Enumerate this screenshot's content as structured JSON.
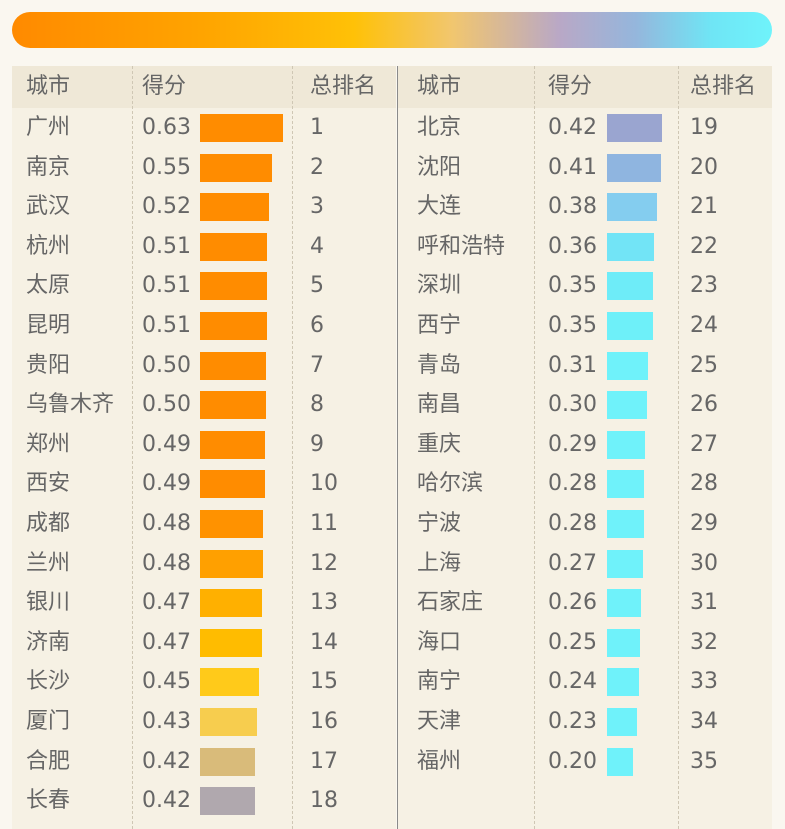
{
  "headers": {
    "city": "城市",
    "score": "得分",
    "rank": "总排名"
  },
  "chart_data": {
    "type": "bar",
    "orientation": "horizontal",
    "xlim": [
      0,
      0.63
    ],
    "columns": [
      "城市",
      "得分",
      "总排名"
    ],
    "rows": [
      {
        "city": "广州",
        "score": 0.63,
        "score_label": "0.63",
        "rank": "1",
        "color": "#ff8c00"
      },
      {
        "city": "南京",
        "score": 0.55,
        "score_label": "0.55",
        "rank": "2",
        "color": "#ff8c00"
      },
      {
        "city": "武汉",
        "score": 0.52,
        "score_label": "0.52",
        "rank": "3",
        "color": "#ff8c00"
      },
      {
        "city": "杭州",
        "score": 0.51,
        "score_label": "0.51",
        "rank": "4",
        "color": "#ff8c00"
      },
      {
        "city": "太原",
        "score": 0.51,
        "score_label": "0.51",
        "rank": "5",
        "color": "#ff8c00"
      },
      {
        "city": "昆明",
        "score": 0.51,
        "score_label": "0.51",
        "rank": "6",
        "color": "#ff8c00"
      },
      {
        "city": "贵阳",
        "score": 0.5,
        "score_label": "0.50",
        "rank": "7",
        "color": "#ff8c00"
      },
      {
        "city": "乌鲁木齐",
        "score": 0.5,
        "score_label": "0.50",
        "rank": "8",
        "color": "#ff8c00"
      },
      {
        "city": "郑州",
        "score": 0.49,
        "score_label": "0.49",
        "rank": "9",
        "color": "#ff8c00"
      },
      {
        "city": "西安",
        "score": 0.49,
        "score_label": "0.49",
        "rank": "10",
        "color": "#ff8c00"
      },
      {
        "city": "成都",
        "score": 0.48,
        "score_label": "0.48",
        "rank": "11",
        "color": "#ff9200"
      },
      {
        "city": "兰州",
        "score": 0.48,
        "score_label": "0.48",
        "rank": "12",
        "color": "#ffa000"
      },
      {
        "city": "银川",
        "score": 0.47,
        "score_label": "0.47",
        "rank": "13",
        "color": "#ffb000"
      },
      {
        "city": "济南",
        "score": 0.47,
        "score_label": "0.47",
        "rank": "14",
        "color": "#ffbc00"
      },
      {
        "city": "长沙",
        "score": 0.45,
        "score_label": "0.45",
        "rank": "15",
        "color": "#ffca1a"
      },
      {
        "city": "厦门",
        "score": 0.43,
        "score_label": "0.43",
        "rank": "16",
        "color": "#f7cd4e"
      },
      {
        "city": "合肥",
        "score": 0.42,
        "score_label": "0.42",
        "rank": "17",
        "color": "#d9bb7a"
      },
      {
        "city": "长春",
        "score": 0.42,
        "score_label": "0.42",
        "rank": "18",
        "color": "#b0a8ae"
      },
      {
        "city": "北京",
        "score": 0.42,
        "score_label": "0.42",
        "rank": "19",
        "color": "#9aa5d0"
      },
      {
        "city": "沈阳",
        "score": 0.41,
        "score_label": "0.41",
        "rank": "20",
        "color": "#8fb5e0"
      },
      {
        "city": "大连",
        "score": 0.38,
        "score_label": "0.38",
        "rank": "21",
        "color": "#84cdef"
      },
      {
        "city": "呼和浩特",
        "score": 0.36,
        "score_label": "0.36",
        "rank": "22",
        "color": "#72e4f6"
      },
      {
        "city": "深圳",
        "score": 0.35,
        "score_label": "0.35",
        "rank": "23",
        "color": "#6eecf8"
      },
      {
        "city": "西宁",
        "score": 0.35,
        "score_label": "0.35",
        "rank": "24",
        "color": "#6ef0f9"
      },
      {
        "city": "青岛",
        "score": 0.31,
        "score_label": "0.31",
        "rank": "25",
        "color": "#6ff2fa"
      },
      {
        "city": "南昌",
        "score": 0.3,
        "score_label": "0.30",
        "rank": "26",
        "color": "#6ff2fa"
      },
      {
        "city": "重庆",
        "score": 0.29,
        "score_label": "0.29",
        "rank": "27",
        "color": "#6ff2fa"
      },
      {
        "city": "哈尔滨",
        "score": 0.28,
        "score_label": "0.28",
        "rank": "28",
        "color": "#6ff2fa"
      },
      {
        "city": "宁波",
        "score": 0.28,
        "score_label": "0.28",
        "rank": "29",
        "color": "#6ff2fa"
      },
      {
        "city": "上海",
        "score": 0.27,
        "score_label": "0.27",
        "rank": "30",
        "color": "#6ff2fa"
      },
      {
        "city": "石家庄",
        "score": 0.26,
        "score_label": "0.26",
        "rank": "31",
        "color": "#6ff2fa"
      },
      {
        "city": "海口",
        "score": 0.25,
        "score_label": "0.25",
        "rank": "32",
        "color": "#6ff2fa"
      },
      {
        "city": "南宁",
        "score": 0.24,
        "score_label": "0.24",
        "rank": "33",
        "color": "#6ff2fa"
      },
      {
        "city": "天津",
        "score": 0.23,
        "score_label": "0.23",
        "rank": "34",
        "color": "#6ff2fa"
      },
      {
        "city": "福州",
        "score": 0.2,
        "score_label": "0.20",
        "rank": "35",
        "color": "#6ff2fa"
      }
    ]
  }
}
